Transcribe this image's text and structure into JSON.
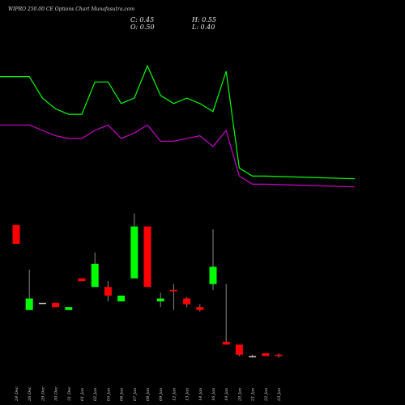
{
  "header": {
    "title": "WIPRO 250.00 CE Options Chart Munafasutra.com",
    "c_label": "C: 0.45",
    "h_label": "H: 0.55",
    "o_label": "O: 0.50",
    "l_label": "L: 0.40"
  },
  "colors": {
    "background": "#000000",
    "up": "#00ff00",
    "down": "#ff0000",
    "wick": "#888888",
    "line_fast": "#00ff00",
    "line_slow": "#cc00cc"
  },
  "chart_data": {
    "type": "candlestick",
    "categories": [
      "24 Dec",
      "26 Dec",
      "29 Dec",
      "30 Dec",
      "31 Dec",
      "01 Jan",
      "02 Jan",
      "05 Jan",
      "06 Jan",
      "07 Jan",
      "08 Jan",
      "09 Jan",
      "12 Jan",
      "13 Jan",
      "14 Jan",
      "16 Jan",
      "19 Jan",
      "20 Jan",
      "21 Jan",
      "22 Jan",
      "23 Jan"
    ],
    "candles": [
      {
        "open": 5.0,
        "high": 5.0,
        "low": 4.35,
        "close": 4.35
      },
      {
        "open": 2.05,
        "high": 3.45,
        "low": 2.05,
        "close": 2.45
      },
      {
        "open": 2.3,
        "high": 2.3,
        "low": 2.3,
        "close": 2.3
      },
      {
        "open": 2.3,
        "high": 2.3,
        "low": 2.15,
        "close": 2.15
      },
      {
        "open": 2.05,
        "high": 2.15,
        "low": 2.05,
        "close": 2.15
      },
      {
        "open": 3.15,
        "high": 3.15,
        "low": 3.05,
        "close": 3.05
      },
      {
        "open": 2.85,
        "high": 4.05,
        "low": 2.85,
        "close": 3.65
      },
      {
        "open": 2.85,
        "high": 3.05,
        "low": 2.35,
        "close": 2.55
      },
      {
        "open": 2.35,
        "high": 2.55,
        "low": 2.35,
        "close": 2.55
      },
      {
        "open": 3.15,
        "high": 5.4,
        "low": 3.15,
        "close": 4.95
      },
      {
        "open": 4.95,
        "high": 4.95,
        "low": 2.85,
        "close": 2.85
      },
      {
        "open": 2.35,
        "high": 2.65,
        "low": 2.15,
        "close": 2.45
      },
      {
        "open": 2.75,
        "high": 2.95,
        "low": 2.05,
        "close": 2.7
      },
      {
        "open": 2.45,
        "high": 2.5,
        "low": 2.15,
        "close": 2.25
      },
      {
        "open": 2.15,
        "high": 2.25,
        "low": 2.0,
        "close": 2.05
      },
      {
        "open": 2.95,
        "high": 4.85,
        "low": 2.75,
        "close": 3.55
      },
      {
        "open": 0.95,
        "high": 2.95,
        "low": 0.85,
        "close": 0.85
      },
      {
        "open": 0.85,
        "high": 0.85,
        "low": 0.45,
        "close": 0.5
      },
      {
        "open": 0.45,
        "high": 0.5,
        "low": 0.4,
        "close": 0.45
      },
      {
        "open": 0.55,
        "high": 0.55,
        "low": 0.45,
        "close": 0.45
      },
      {
        "open": 0.5,
        "high": 0.55,
        "low": 0.4,
        "close": 0.45
      }
    ],
    "ma_fast": [
      3.95,
      3.95,
      3.55,
      3.35,
      3.25,
      3.25,
      3.85,
      3.85,
      3.45,
      3.55,
      4.15,
      3.6,
      3.45,
      3.55,
      3.45,
      3.3,
      4.05,
      2.25,
      2.1,
      2.1,
      2.05
    ],
    "ma_slow": [
      3.05,
      3.05,
      2.95,
      2.85,
      2.8,
      2.8,
      2.95,
      3.05,
      2.8,
      2.9,
      3.05,
      2.75,
      2.75,
      2.8,
      2.85,
      2.65,
      2.95,
      2.1,
      1.95,
      1.95,
      1.9
    ]
  }
}
